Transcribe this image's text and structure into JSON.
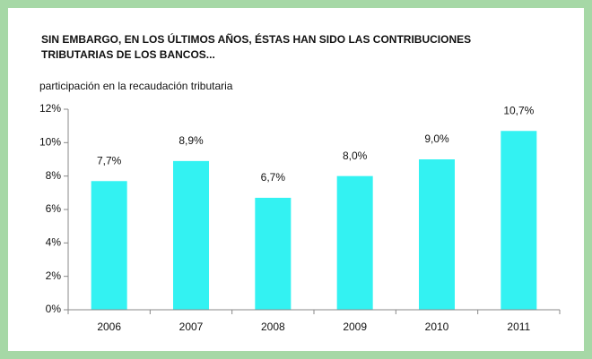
{
  "chart_data": {
    "type": "bar",
    "title": [
      "SIN EMBARGO, EN LOS ÚLTIMOS AÑOS, ÉSTAS HAN SIDO LAS CONTRIBUCIONES",
      "TRIBUTARIAS DE LOS BANCOS..."
    ],
    "subtitle": "participación en la recaudación tributaria",
    "categories": [
      "2006",
      "2007",
      "2008",
      "2009",
      "2010",
      "2011"
    ],
    "values": [
      7.7,
      8.9,
      6.7,
      8.0,
      9.0,
      10.7
    ],
    "value_labels": [
      "7,7%",
      "8,9%",
      "6,7%",
      "8,0%",
      "9,0%",
      "10,7%"
    ],
    "color": "#33f2f2",
    "ylim": [
      0,
      12
    ],
    "yticks": [
      {
        "value": 0,
        "label": "0%"
      },
      {
        "value": 2,
        "label": "2%"
      },
      {
        "value": 4,
        "label": "4%"
      },
      {
        "value": 6,
        "label": "6%"
      },
      {
        "value": 8,
        "label": "8%"
      },
      {
        "value": 10,
        "label": "10%"
      },
      {
        "value": 12,
        "label": "12%"
      }
    ]
  }
}
